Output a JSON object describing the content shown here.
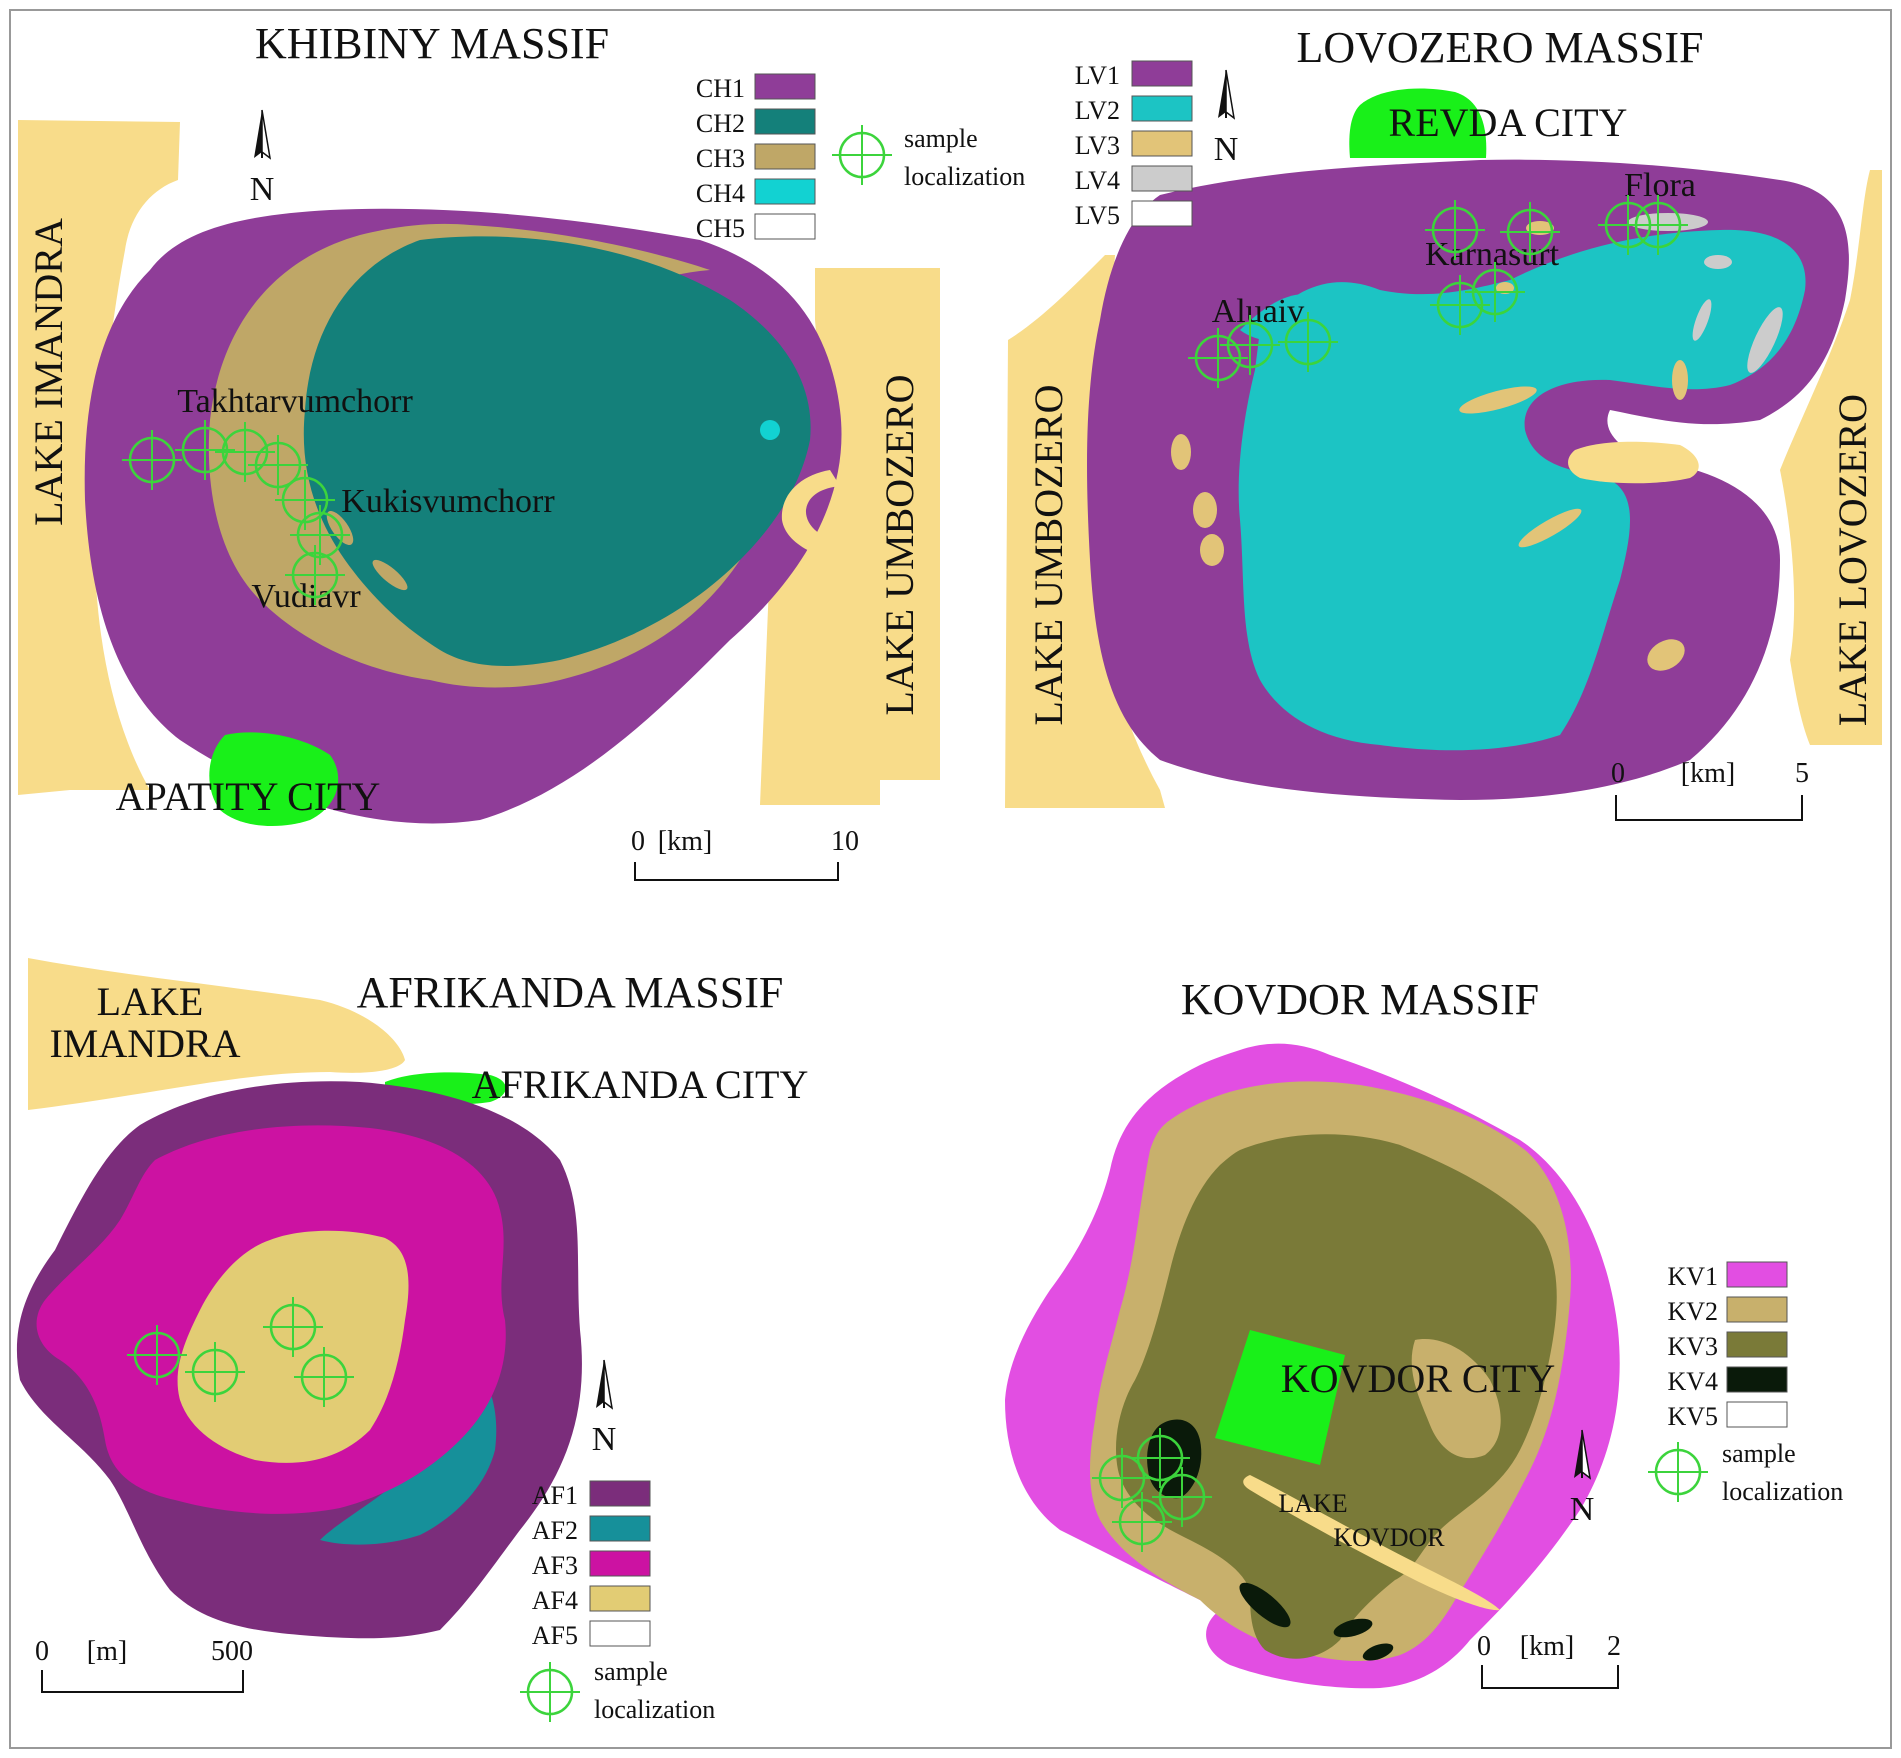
{
  "colors": {
    "lake": "#f8dc8a",
    "city": "#19f019",
    "marker": "#3cd43c",
    "CH1": "#8f3d98",
    "CH2": "#14807a",
    "CH3": "#bfa767",
    "CH4": "#12d2d2",
    "CH5": "#ffffff",
    "LV1": "#8f3d98",
    "LV2": "#1cc4c4",
    "LV3": "#e2c478",
    "LV4": "#cccccc",
    "LV5": "#ffffff",
    "AF1": "#7b2d7b",
    "AF2": "#16909a",
    "AF3": "#cc12a2",
    "AF4": "#e2cc74",
    "AF5": "#ffffff",
    "KV1": "#e24ee2",
    "KV2": "#c8b06c",
    "KV3": "#7a7a38",
    "KV4": "#0a1a0a",
    "KV5": "#ffffff"
  },
  "common": {
    "sample_text": "sample",
    "localization_text": "localization",
    "north_label": "N"
  },
  "khibiny": {
    "title": "KHIBINY MASSIF",
    "lake_left": "LAKE IMANDRA",
    "lake_right": "LAKE UMBOZERO",
    "city": "APATITY CITY",
    "sites": [
      "Takhtarvumchorr",
      "Kukisvumchorr",
      "Vudiavr"
    ],
    "legend": [
      "CH1",
      "CH2",
      "CH3",
      "CH4",
      "CH5"
    ],
    "scale": {
      "start": "0",
      "unit": "[km]",
      "end": "10"
    }
  },
  "lovozero": {
    "title": "LOVOZERO MASSIF",
    "city": "REVDA CITY",
    "lake_left": "LAKE UMBOZERO",
    "lake_right": "LAKE LOVOZERO",
    "sites": [
      "Flora",
      "Karnasurt",
      "Aluaiv"
    ],
    "legend": [
      "LV1",
      "LV2",
      "LV3",
      "LV4",
      "LV5"
    ],
    "scale": {
      "start": "0",
      "unit": "[km]",
      "end": "5"
    }
  },
  "afrikanda": {
    "title": "AFRIKANDA MASSIF",
    "lake_line1": "LAKE",
    "lake_line2": "IMANDRA",
    "city": "AFRIKANDA CITY",
    "legend": [
      "AF1",
      "AF2",
      "AF3",
      "AF4",
      "AF5"
    ],
    "scale": {
      "start": "0",
      "unit": "[m]",
      "end": "500"
    }
  },
  "kovdor": {
    "title": "KOVDOR MASSIF",
    "city": "KOVDOR CITY",
    "lake_line1": "LAKE",
    "lake_line2": "KOVDOR",
    "legend": [
      "KV1",
      "KV2",
      "KV3",
      "KV4",
      "KV5"
    ],
    "scale": {
      "start": "0",
      "unit": "[km]",
      "end": "2"
    }
  }
}
